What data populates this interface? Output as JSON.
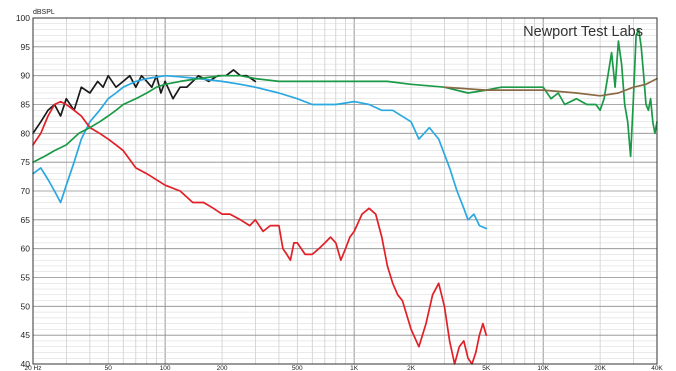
{
  "chart_data": {
    "type": "line",
    "ylabel": "dBSPL",
    "watermark": "Newport Test Labs",
    "x_scale": "log",
    "xlim": [
      20,
      40000
    ],
    "ylim": [
      40,
      100
    ],
    "grid": true,
    "y_ticks": [
      40,
      45,
      50,
      55,
      60,
      65,
      70,
      75,
      80,
      85,
      90,
      95,
      100
    ],
    "x_ticks": [
      {
        "v": 20,
        "label": "20 Hz"
      },
      {
        "v": 50,
        "label": "50"
      },
      {
        "v": 100,
        "label": "100"
      },
      {
        "v": 200,
        "label": "200"
      },
      {
        "v": 500,
        "label": "500"
      },
      {
        "v": 1000,
        "label": "1K"
      },
      {
        "v": 2000,
        "label": "2K"
      },
      {
        "v": 5000,
        "label": "5K"
      },
      {
        "v": 10000,
        "label": "10K"
      },
      {
        "v": 20000,
        "label": "20K"
      },
      {
        "v": 40000,
        "label": "40K"
      }
    ],
    "series": [
      {
        "color": "#1a1a1a",
        "points": [
          [
            20,
            80
          ],
          [
            22,
            82
          ],
          [
            24,
            84
          ],
          [
            26,
            85
          ],
          [
            28,
            83
          ],
          [
            30,
            86
          ],
          [
            33,
            84
          ],
          [
            36,
            88
          ],
          [
            40,
            87
          ],
          [
            44,
            89
          ],
          [
            47,
            88
          ],
          [
            50,
            90
          ],
          [
            55,
            88
          ],
          [
            60,
            89
          ],
          [
            65,
            90
          ],
          [
            70,
            88
          ],
          [
            75,
            90
          ],
          [
            80,
            89
          ],
          [
            85,
            88
          ],
          [
            90,
            90
          ],
          [
            95,
            87
          ],
          [
            100,
            89
          ],
          [
            110,
            86
          ],
          [
            120,
            88
          ],
          [
            130,
            88
          ],
          [
            140,
            89
          ],
          [
            150,
            90
          ],
          [
            170,
            89
          ],
          [
            190,
            90
          ],
          [
            210,
            90
          ],
          [
            230,
            91
          ],
          [
            250,
            90
          ],
          [
            270,
            90
          ],
          [
            300,
            89
          ]
        ]
      },
      {
        "color": "#2aa8e0",
        "points": [
          [
            20,
            73
          ],
          [
            22,
            74
          ],
          [
            24,
            72
          ],
          [
            26,
            70
          ],
          [
            28,
            68
          ],
          [
            30,
            71
          ],
          [
            33,
            75
          ],
          [
            36,
            79
          ],
          [
            40,
            82
          ],
          [
            45,
            84
          ],
          [
            50,
            86
          ],
          [
            55,
            87
          ],
          [
            60,
            88
          ],
          [
            70,
            89
          ],
          [
            80,
            89.5
          ],
          [
            100,
            90
          ],
          [
            120,
            89.8
          ],
          [
            150,
            89.5
          ],
          [
            200,
            89
          ],
          [
            250,
            88.5
          ],
          [
            300,
            88
          ],
          [
            400,
            87
          ],
          [
            500,
            86
          ],
          [
            600,
            85
          ],
          [
            700,
            85
          ],
          [
            800,
            85
          ],
          [
            1000,
            85.5
          ],
          [
            1200,
            85
          ],
          [
            1400,
            84
          ],
          [
            1600,
            84
          ],
          [
            2000,
            82
          ],
          [
            2200,
            79
          ],
          [
            2500,
            81
          ],
          [
            2800,
            79
          ],
          [
            3200,
            74
          ],
          [
            3500,
            70
          ],
          [
            3800,
            67
          ],
          [
            4000,
            65
          ],
          [
            4300,
            66
          ],
          [
            4600,
            64
          ],
          [
            5000,
            63.5
          ]
        ]
      },
      {
        "color": "#e21f26",
        "points": [
          [
            20,
            78
          ],
          [
            22,
            80
          ],
          [
            24,
            83
          ],
          [
            26,
            85
          ],
          [
            28,
            85.5
          ],
          [
            30,
            85
          ],
          [
            33,
            84
          ],
          [
            36,
            83
          ],
          [
            40,
            81
          ],
          [
            45,
            80
          ],
          [
            50,
            79
          ],
          [
            55,
            78
          ],
          [
            60,
            77
          ],
          [
            70,
            74
          ],
          [
            80,
            73
          ],
          [
            100,
            71
          ],
          [
            120,
            70
          ],
          [
            140,
            68
          ],
          [
            160,
            68
          ],
          [
            180,
            67
          ],
          [
            200,
            66
          ],
          [
            220,
            66
          ],
          [
            250,
            65
          ],
          [
            280,
            64
          ],
          [
            300,
            65
          ],
          [
            330,
            63
          ],
          [
            360,
            64
          ],
          [
            400,
            64
          ],
          [
            420,
            60
          ],
          [
            440,
            59
          ],
          [
            460,
            58
          ],
          [
            480,
            61
          ],
          [
            500,
            61
          ],
          [
            550,
            59
          ],
          [
            600,
            59
          ],
          [
            650,
            60
          ],
          [
            700,
            61
          ],
          [
            750,
            62
          ],
          [
            800,
            61
          ],
          [
            850,
            58
          ],
          [
            900,
            60
          ],
          [
            950,
            62
          ],
          [
            1000,
            63
          ],
          [
            1100,
            66
          ],
          [
            1200,
            67
          ],
          [
            1300,
            66
          ],
          [
            1400,
            62
          ],
          [
            1500,
            57
          ],
          [
            1600,
            54
          ],
          [
            1700,
            52
          ],
          [
            1800,
            51
          ],
          [
            2000,
            46
          ],
          [
            2200,
            43
          ],
          [
            2400,
            47
          ],
          [
            2600,
            52
          ],
          [
            2800,
            54
          ],
          [
            3000,
            50
          ],
          [
            3200,
            44
          ],
          [
            3400,
            40
          ],
          [
            3600,
            43
          ],
          [
            3800,
            44
          ],
          [
            4000,
            41
          ],
          [
            4200,
            40
          ],
          [
            4400,
            42
          ],
          [
            4600,
            45
          ],
          [
            4800,
            47
          ],
          [
            5000,
            45
          ]
        ]
      },
      {
        "color": "#1a9a46",
        "points": [
          [
            20,
            75
          ],
          [
            23,
            76
          ],
          [
            26,
            77
          ],
          [
            30,
            78
          ],
          [
            35,
            80
          ],
          [
            40,
            81
          ],
          [
            45,
            82
          ],
          [
            50,
            83
          ],
          [
            55,
            84
          ],
          [
            60,
            85
          ],
          [
            70,
            86
          ],
          [
            80,
            87
          ],
          [
            90,
            88
          ],
          [
            100,
            88.5
          ],
          [
            120,
            89
          ],
          [
            150,
            89.5
          ],
          [
            200,
            90
          ],
          [
            250,
            90
          ],
          [
            300,
            89.5
          ],
          [
            400,
            89
          ],
          [
            500,
            89
          ],
          [
            700,
            89
          ],
          [
            1000,
            89
          ],
          [
            1500,
            89
          ],
          [
            2000,
            88.5
          ],
          [
            3000,
            88
          ],
          [
            4000,
            87
          ],
          [
            5000,
            87.5
          ],
          [
            6000,
            88
          ],
          [
            8000,
            88
          ],
          [
            10000,
            88
          ],
          [
            11000,
            86
          ],
          [
            12000,
            87
          ],
          [
            13000,
            85
          ],
          [
            15000,
            86
          ],
          [
            17000,
            85
          ],
          [
            19000,
            85
          ],
          [
            20000,
            84
          ],
          [
            21000,
            86
          ],
          [
            22000,
            90
          ],
          [
            23000,
            94
          ],
          [
            24000,
            88
          ],
          [
            25000,
            96
          ],
          [
            26000,
            92
          ],
          [
            27000,
            85
          ],
          [
            28000,
            82
          ],
          [
            29000,
            76
          ],
          [
            30000,
            86
          ],
          [
            31000,
            97
          ],
          [
            32000,
            98
          ],
          [
            33000,
            95
          ],
          [
            34000,
            90
          ],
          [
            35000,
            85
          ],
          [
            36000,
            84
          ],
          [
            37000,
            86
          ],
          [
            38000,
            82
          ],
          [
            39000,
            80
          ],
          [
            40000,
            82
          ]
        ]
      },
      {
        "color": "#8a6a45",
        "points": [
          [
            3000,
            88
          ],
          [
            5000,
            87.5
          ],
          [
            8000,
            87.5
          ],
          [
            10000,
            87.5
          ],
          [
            15000,
            87
          ],
          [
            20000,
            86.5
          ],
          [
            25000,
            87
          ],
          [
            30000,
            88
          ],
          [
            35000,
            88.5
          ],
          [
            40000,
            89.5
          ]
        ]
      }
    ]
  }
}
